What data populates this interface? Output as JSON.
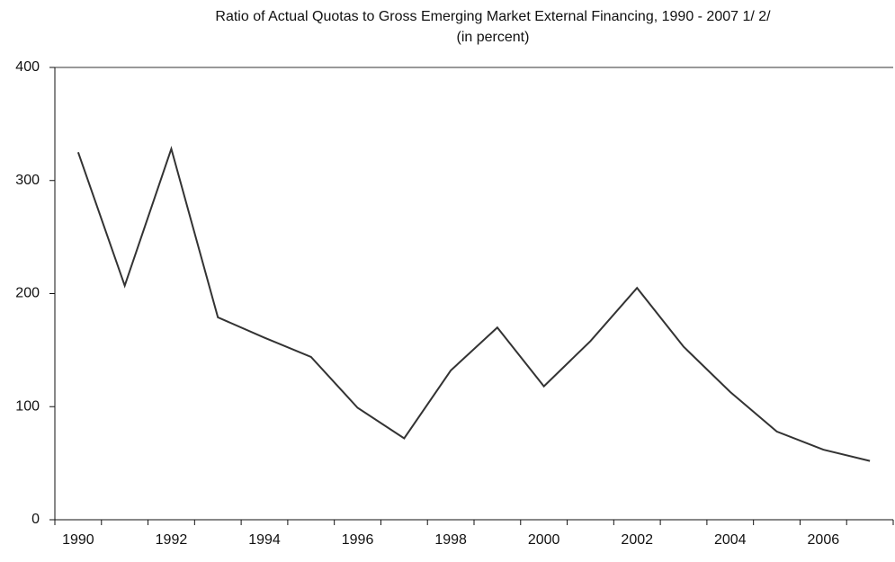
{
  "chart_data": {
    "type": "line",
    "title": "Ratio of Actual Quotas to Gross Emerging Market External Financing, 1990 - 2007 1/ 2/",
    "subtitle": "(in percent)",
    "categories": [
      "1990",
      null,
      "1992",
      null,
      "1994",
      null,
      "1996",
      null,
      "1998",
      null,
      "2000",
      null,
      "2002",
      null,
      "2004",
      null,
      "2006",
      null
    ],
    "series": [
      {
        "name": "Ratio",
        "color": "#333333",
        "values": [
          325,
          207,
          328,
          179,
          161,
          144,
          99,
          72,
          132,
          170,
          118,
          158,
          205,
          153,
          113,
          78,
          62,
          52
        ]
      }
    ],
    "ylim": [
      0,
      400
    ],
    "yticks": [
      0,
      100,
      200,
      300,
      400
    ],
    "grid": false
  }
}
